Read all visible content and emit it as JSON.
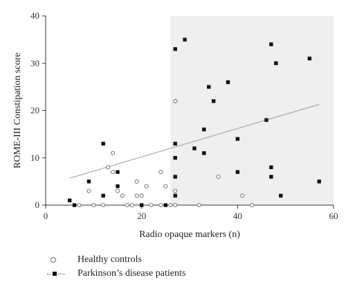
{
  "chart_data": {
    "type": "scatter",
    "xlabel": "Radio opaque markers (n)",
    "ylabel": "ROME-III Constipation score",
    "xlim": [
      0,
      60
    ],
    "ylim": [
      0,
      40
    ],
    "xticks": [
      0,
      20,
      40,
      60
    ],
    "yticks": [
      0,
      10,
      20,
      30,
      40
    ],
    "grid": false,
    "shaded_region": {
      "x": [
        26,
        60
      ],
      "y": [
        0,
        40
      ],
      "color": "#efefef"
    },
    "trend_line": {
      "x": [
        5,
        57
      ],
      "y": [
        5.7,
        21.3
      ],
      "color": "#aaaaaa"
    },
    "series": [
      {
        "name": "Healthy controls",
        "marker": "open-circle",
        "color": "#666666",
        "points": [
          [
            7,
            0
          ],
          [
            9,
            3
          ],
          [
            10,
            0
          ],
          [
            12,
            0
          ],
          [
            13,
            8
          ],
          [
            14,
            11
          ],
          [
            14,
            7
          ],
          [
            15,
            3
          ],
          [
            16,
            2
          ],
          [
            17,
            0
          ],
          [
            18,
            0
          ],
          [
            19,
            5
          ],
          [
            19,
            2
          ],
          [
            20,
            0
          ],
          [
            20,
            2
          ],
          [
            21,
            4
          ],
          [
            22,
            0
          ],
          [
            24,
            7
          ],
          [
            24,
            0
          ],
          [
            25,
            4
          ],
          [
            26,
            0
          ],
          [
            27,
            22
          ],
          [
            27,
            3
          ],
          [
            27,
            0
          ],
          [
            32,
            0
          ],
          [
            36,
            6
          ],
          [
            41,
            2
          ],
          [
            43,
            0
          ]
        ]
      },
      {
        "name": "Parkinson’s disease patients",
        "marker": "filled-square",
        "color": "#111111",
        "points": [
          [
            5,
            1
          ],
          [
            6,
            0
          ],
          [
            9,
            5
          ],
          [
            12,
            13
          ],
          [
            12,
            2
          ],
          [
            15,
            7
          ],
          [
            15,
            4
          ],
          [
            20,
            0
          ],
          [
            25,
            0
          ],
          [
            27,
            33
          ],
          [
            27,
            13
          ],
          [
            27,
            10
          ],
          [
            27,
            6
          ],
          [
            27,
            2
          ],
          [
            29,
            35
          ],
          [
            31,
            12
          ],
          [
            33,
            16
          ],
          [
            33,
            11
          ],
          [
            34,
            25
          ],
          [
            35,
            22
          ],
          [
            38,
            26
          ],
          [
            40,
            14
          ],
          [
            40,
            7
          ],
          [
            46,
            18
          ],
          [
            47,
            34
          ],
          [
            47,
            8
          ],
          [
            47,
            6
          ],
          [
            48,
            30
          ],
          [
            49,
            2
          ],
          [
            55,
            31
          ],
          [
            57,
            5
          ]
        ]
      }
    ]
  }
}
